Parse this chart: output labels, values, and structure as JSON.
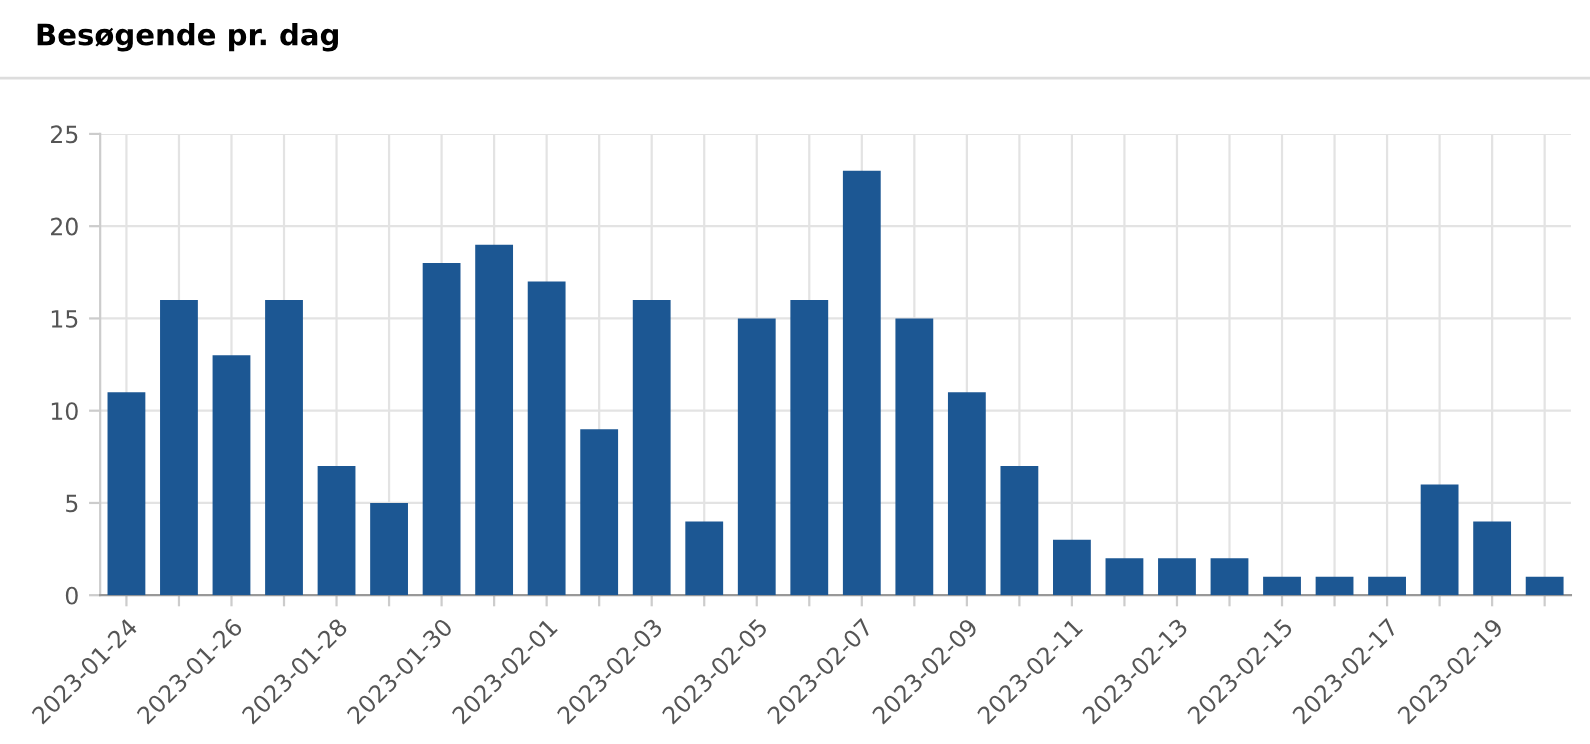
{
  "chart_data": {
    "type": "bar",
    "title": "Besøgende pr. dag",
    "categories": [
      "2023-01-24",
      null,
      "2023-01-26",
      null,
      "2023-01-28",
      null,
      "2023-01-30",
      null,
      "2023-02-01",
      null,
      "2023-02-03",
      null,
      "2023-02-05",
      null,
      "2023-02-07",
      null,
      "2023-02-09",
      null,
      "2023-02-11",
      null,
      "2023-02-13",
      null,
      "2023-02-15",
      null,
      "2023-02-17",
      null,
      "2023-02-19",
      null
    ],
    "values": [
      11,
      16,
      13,
      16,
      7,
      5,
      18,
      19,
      17,
      9,
      16,
      4,
      15,
      16,
      23,
      15,
      11,
      7,
      3,
      2,
      2,
      2,
      1,
      1,
      1,
      6,
      4,
      1
    ],
    "color": "#1c5793",
    "ylim": [
      0,
      25
    ],
    "yticks": [
      0,
      5,
      10,
      15,
      20,
      25
    ],
    "grid": true
  }
}
